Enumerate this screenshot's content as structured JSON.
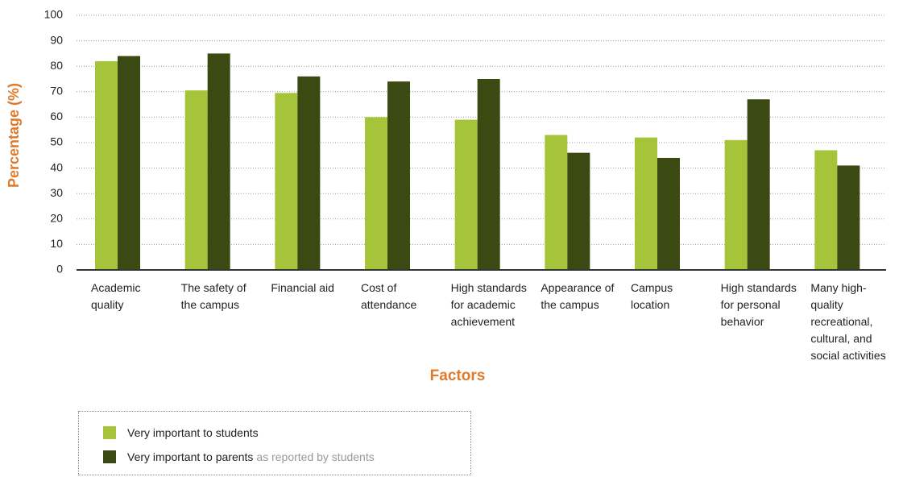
{
  "chart_data": {
    "type": "bar",
    "y_label": "Percentage (%)",
    "x_label": "Factors",
    "categories": [
      "Academic quality",
      "The safety of the campus",
      "Financial aid",
      "Cost of attendance",
      "High standards for academic achievement",
      "Appearance of the campus",
      "Campus location",
      "High standards for personal behavior",
      "Many high-quality recreational, cultural, and social activities"
    ],
    "series": [
      {
        "name": "Very important to students",
        "color": "#a6c43a",
        "values": [
          82,
          70.5,
          69.5,
          60,
          59,
          53,
          52,
          51,
          47
        ]
      },
      {
        "name": "Very important to parents",
        "color": "#3b4a12",
        "values": [
          84,
          85,
          76,
          74,
          75,
          46,
          44,
          67,
          41
        ]
      }
    ],
    "legend_note": "as reported by students",
    "ylim": [
      0,
      100
    ],
    "yticks": [
      0,
      10,
      20,
      30,
      40,
      50,
      60,
      70,
      80,
      90,
      100
    ],
    "grid": true
  }
}
